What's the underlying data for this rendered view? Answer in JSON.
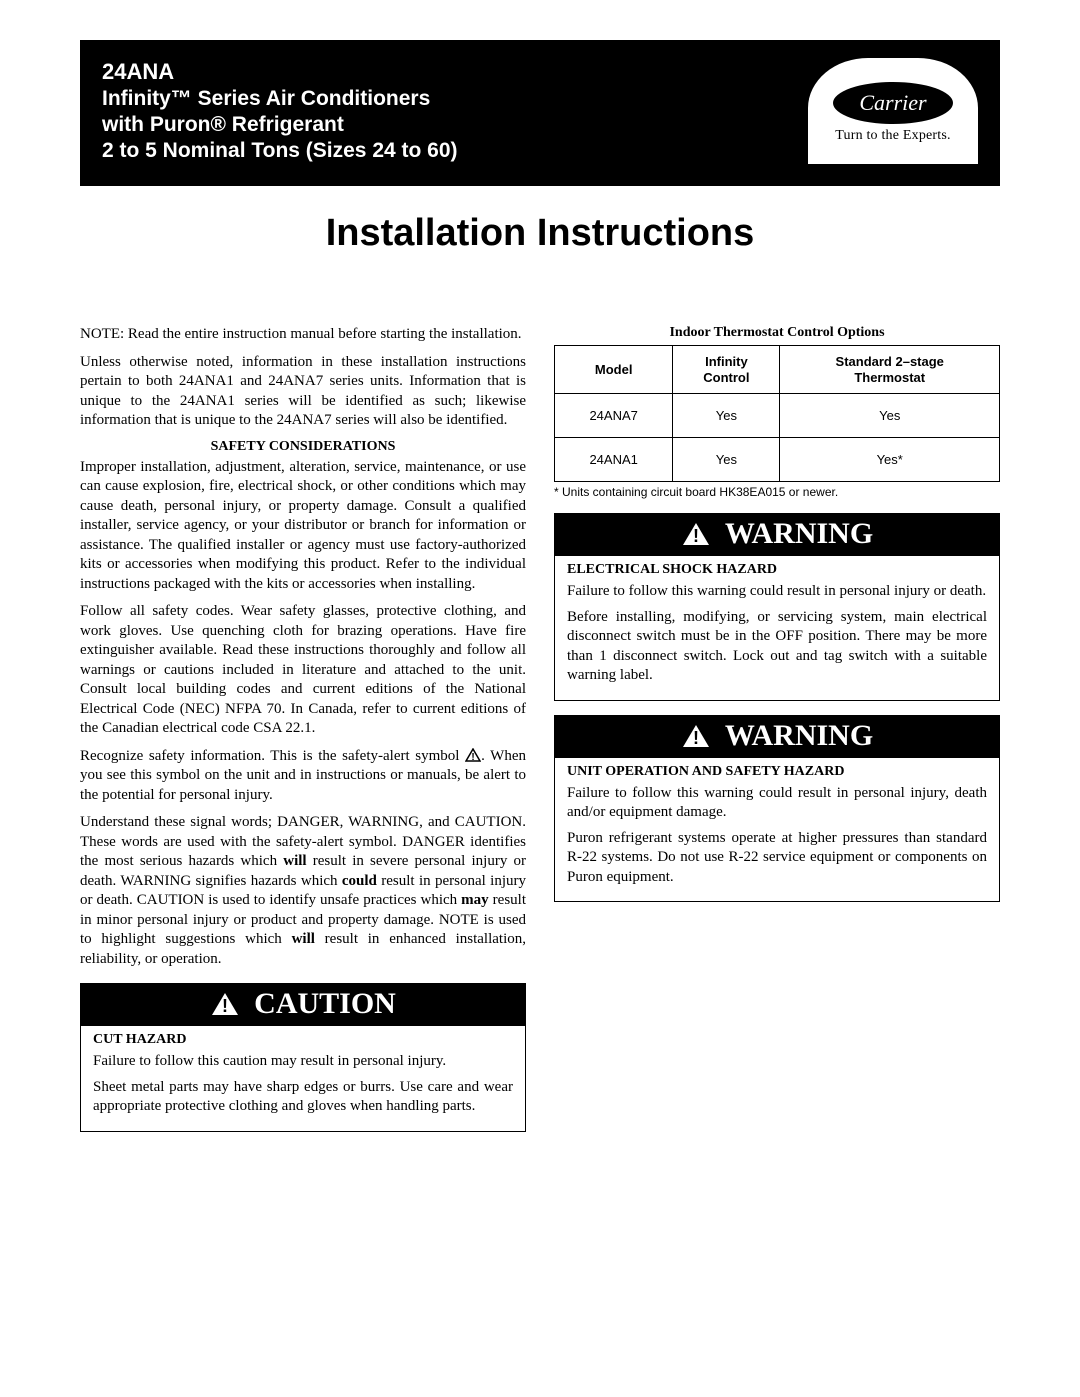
{
  "header": {
    "model_code": "24ANA",
    "line2": "Infinity™ Series Air Conditioners",
    "line3": "with Puron® Refrigerant",
    "line4": "2 to 5 Nominal Tons (Sizes 24 to 60)",
    "logo_brand": "Carrier",
    "logo_tagline": "Turn to the Experts."
  },
  "main_title": "Installation Instructions",
  "left": {
    "note_para": "NOTE: Read the entire instruction manual before starting the installation.",
    "unless_para": "Unless otherwise noted, information in these installation instructions pertain to both 24ANA1 and 24ANA7 series units. Information that is unique to the 24ANA1 series will be identified as such; likewise information that is unique to the 24ANA7 series will also be identified.",
    "safety_heading": "SAFETY CONSIDERATIONS",
    "safety_p1": "Improper installation, adjustment, alteration, service, maintenance, or use can cause explosion, fire, electrical shock, or other conditions which may cause death, personal injury, or property damage. Consult a qualified installer, service agency, or your distributor or branch for information or assistance. The qualified installer or agency must use factory-authorized kits or accessories when modifying this product. Refer to the individual instructions packaged with the kits or accessories when installing.",
    "safety_p2": "Follow all safety codes. Wear safety glasses, protective clothing, and work gloves. Use quenching cloth for brazing operations. Have fire extinguisher available. Read these instructions thoroughly and follow all warnings or cautions included in literature and attached to the unit. Consult local building codes and current editions of the National Electrical Code (NEC) NFPA 70. In Canada, refer to current editions of the Canadian electrical code CSA 22.1.",
    "safety_p3_a": "Recognize safety information. This is the safety-alert symbol ",
    "safety_p3_b": ". When you see this symbol on the unit and in instructions or manuals, be alert to the potential for personal injury.",
    "safety_p4_html": "Understand these signal words; DANGER, WARNING, and CAUTION. These words are used with the safety-alert symbol. DANGER identifies the most serious hazards which <b>will</b> result in severe personal injury or death.  WARNING signifies hazards which <b>could</b> result in personal injury or death. CAUTION is used to identify unsafe practices which <b>may</b> result in minor personal injury or product and property damage. NOTE is used to highlight suggestions which <b>will</b> result in enhanced installation, reliability, or operation."
  },
  "caution_box": {
    "label": "CAUTION",
    "subhead": "CUT HAZARD",
    "p1": "Failure to follow this caution may result in personal injury.",
    "p2": "Sheet metal parts may have sharp edges or burrs. Use care and wear appropriate protective clothing and gloves when handling parts."
  },
  "right": {
    "table_caption": "Indoor Thermostat Control Options",
    "table": {
      "headers": [
        "Model",
        "Infinity Control",
        "Standard 2–stage Thermostat"
      ],
      "rows": [
        [
          "24ANA7",
          "Yes",
          "Yes"
        ],
        [
          "24ANA1",
          "Yes",
          "Yes*"
        ]
      ]
    },
    "footnote": "* Units containing circuit board HK38EA015 or newer."
  },
  "warning_box_1": {
    "label": "WARNING",
    "subhead": "ELECTRICAL SHOCK HAZARD",
    "p1": "Failure to follow this warning could result in personal injury or death.",
    "p2": "Before installing, modifying, or servicing system, main electrical disconnect switch must be in the OFF position. There may be more than 1 disconnect switch. Lock out and tag switch with a suitable warning label."
  },
  "warning_box_2": {
    "label": "WARNING",
    "subhead": "UNIT OPERATION AND SAFETY HAZARD",
    "p1": "Failure to follow this warning could result in personal injury, death and/or equipment damage.",
    "p2": "Puron refrigerant systems operate at higher pressures than standard R-22 systems. Do not use R-22 service equipment or components on Puron equipment."
  }
}
